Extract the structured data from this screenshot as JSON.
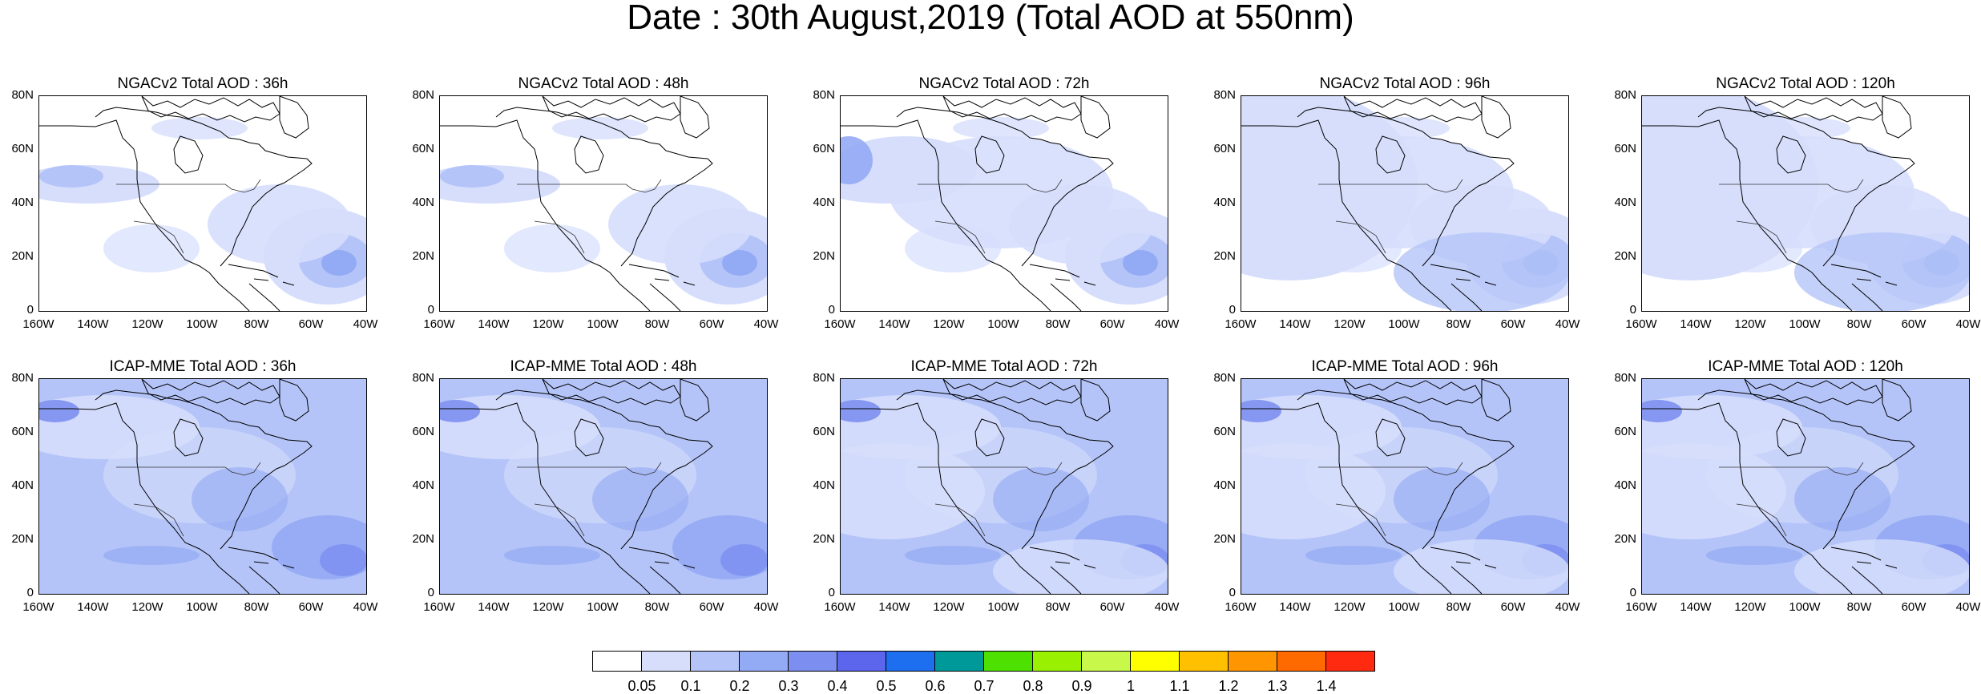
{
  "figure": {
    "title": "Date : 30th August,2019 (Total AOD at 550nm)"
  },
  "panels": [
    {
      "title": "NGACv2 Total AOD : 36h",
      "model": "NGACv2",
      "lead": "36h"
    },
    {
      "title": "NGACv2 Total AOD : 48h",
      "model": "NGACv2",
      "lead": "48h"
    },
    {
      "title": "NGACv2 Total AOD : 72h",
      "model": "NGACv2",
      "lead": "72h"
    },
    {
      "title": "NGACv2 Total AOD : 96h",
      "model": "NGACv2",
      "lead": "96h"
    },
    {
      "title": "NGACv2 Total AOD : 120h",
      "model": "NGACv2",
      "lead": "120h"
    },
    {
      "title": "ICAP-MME Total AOD : 36h",
      "model": "ICAP-MME",
      "lead": "36h"
    },
    {
      "title": "ICAP-MME Total AOD : 48h",
      "model": "ICAP-MME",
      "lead": "48h"
    },
    {
      "title": "ICAP-MME Total AOD : 72h",
      "model": "ICAP-MME",
      "lead": "72h"
    },
    {
      "title": "ICAP-MME Total AOD : 96h",
      "model": "ICAP-MME",
      "lead": "96h"
    },
    {
      "title": "ICAP-MME Total AOD : 120h",
      "model": "ICAP-MME",
      "lead": "120h"
    }
  ],
  "axes": {
    "lat_ticks": [
      "80N",
      "60N",
      "40N",
      "20N",
      "0"
    ],
    "lon_ticks": [
      "160W",
      "140W",
      "120W",
      "100W",
      "80W",
      "60W",
      "40W"
    ]
  },
  "colorbar": {
    "levels": [
      "0.05",
      "0.1",
      "0.2",
      "0.3",
      "0.4",
      "0.5",
      "0.6",
      "0.7",
      "0.8",
      "0.9",
      "1",
      "1.1",
      "1.2",
      "1.3",
      "1.4"
    ],
    "colors": [
      "#ffffff",
      "#d6defc",
      "#b4c4f8",
      "#93aaf4",
      "#7c8ff0",
      "#5b66ec",
      "#1d6ff0",
      "#009999",
      "#4ee000",
      "#99f000",
      "#c8f84a",
      "#ffff00",
      "#ffc000",
      "#ff9500",
      "#ff6a00",
      "#ff2a10"
    ]
  }
}
